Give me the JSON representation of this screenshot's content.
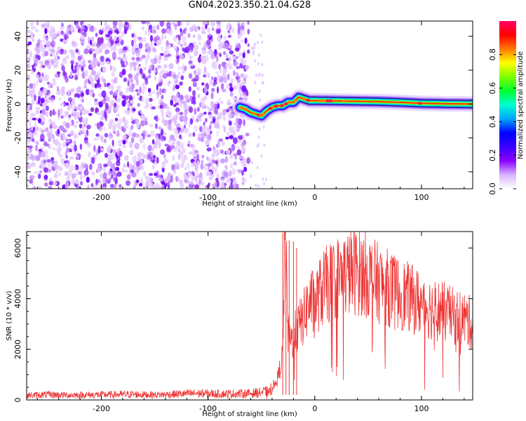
{
  "page": {
    "title": "GN04.2023.350.21.04.G28"
  },
  "chart_data": [
    {
      "type": "heatmap",
      "title": "GN04.2023.350.21.04.G28",
      "xlabel": "Height of straight line (km)",
      "ylabel": "Frequency (Hz)",
      "xlim": [
        -270,
        148
      ],
      "ylim": [
        -50,
        49
      ],
      "x_ticks": [
        -200,
        -100,
        0,
        100
      ],
      "y_ticks": [
        -40,
        -20,
        0,
        20,
        40
      ],
      "grid": false,
      "noise_region_x": [
        -270,
        -62
      ],
      "ridge": {
        "x": [
          -70,
          -65,
          -60,
          -55,
          -50,
          -45,
          -40,
          -35,
          -30,
          -25,
          -20,
          -15,
          -10,
          -5,
          0,
          20,
          40,
          60,
          80,
          100,
          120,
          148
        ],
        "freq": [
          -2,
          -3,
          -5,
          -6,
          -7,
          -4,
          -2,
          -1,
          -1,
          1,
          1,
          4,
          3,
          2,
          2,
          1.8,
          1.6,
          1.4,
          1.0,
          0.4,
          0.2,
          0.0
        ]
      },
      "colorbar": {
        "label": "Normalized spectral amplitude",
        "range": [
          0,
          1
        ],
        "ticks": [
          "0.0",
          "0.2",
          "0.4",
          "0.6",
          "0.8"
        ],
        "colors": [
          "#ffffff",
          "#d9b3ff",
          "#8a00ff",
          "#3a00ff",
          "#0000ff",
          "#00a6ff",
          "#00ffd0",
          "#00ff30",
          "#7bff00",
          "#ffff00",
          "#ff7a00",
          "#ff0000",
          "#ff0066"
        ]
      }
    },
    {
      "type": "line",
      "xlabel": "Height of straight line (km)",
      "ylabel": "SNR (10 * v/v)",
      "xlim": [
        -270,
        148
      ],
      "ylim": [
        0,
        6650
      ],
      "x_ticks": [
        -200,
        -100,
        0,
        100
      ],
      "y_ticks": [
        0,
        2000,
        4000,
        6000
      ],
      "grid": false,
      "line_color": "#ee3333",
      "series": [
        {
          "x": [
            -270,
            -250,
            -230,
            -210,
            -190,
            -170,
            -150,
            -130,
            -110,
            -90,
            -70,
            -60,
            -50,
            -45,
            -40,
            -35,
            -30,
            -28,
            -25,
            -22,
            -20,
            -15,
            -10,
            -5,
            0,
            5,
            10,
            20,
            30,
            40,
            50,
            60,
            70,
            80,
            90,
            100,
            110,
            120,
            130,
            140,
            148
          ],
          "values": [
            180,
            210,
            190,
            200,
            210,
            220,
            200,
            230,
            260,
            240,
            250,
            260,
            300,
            330,
            500,
            800,
            1800,
            6600,
            2600,
            2300,
            2500,
            2900,
            3300,
            3900,
            3800,
            4200,
            4500,
            4800,
            5000,
            5100,
            4900,
            4600,
            4400,
            4200,
            4000,
            3800,
            3600,
            3500,
            3300,
            3200,
            3000
          ]
        }
      ]
    }
  ]
}
